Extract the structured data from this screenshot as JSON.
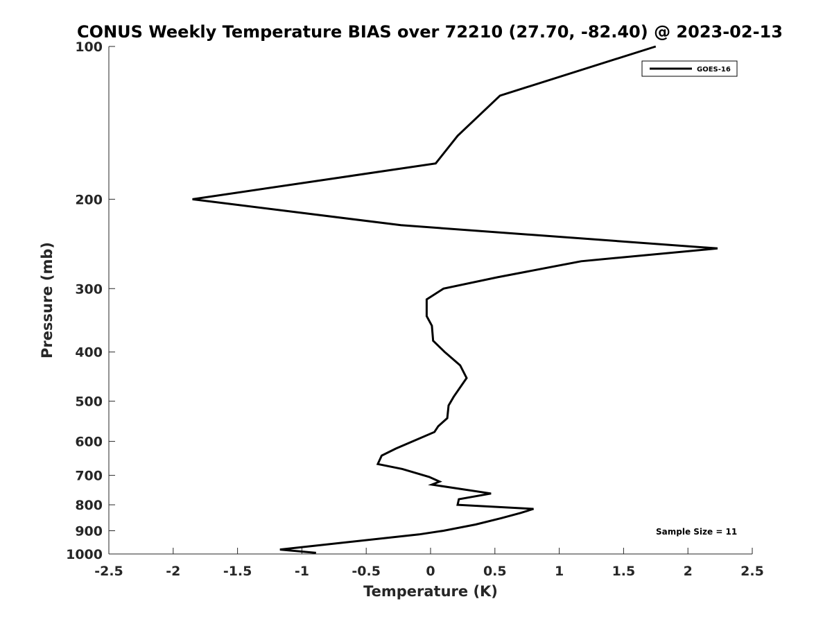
{
  "chart_data": {
    "type": "line",
    "title": "CONUS Weekly Temperature BIAS over 72210 (27.70, -82.40) @ 2023-02-13",
    "xlabel": "Temperature (K)",
    "ylabel": "Pressure (mb)",
    "xlim": [
      -2.5,
      2.5
    ],
    "ylim": [
      1000,
      100
    ],
    "y_scale": "log",
    "y_reversed": true,
    "x_ticks": [
      -2.5,
      -2,
      -1.5,
      -1,
      -0.5,
      0,
      0.5,
      1,
      1.5,
      2,
      2.5
    ],
    "x_tick_labels": [
      "-2.5",
      "-2",
      "-1.5",
      "-1",
      "-0.5",
      "0",
      "0.5",
      "1",
      "1.5",
      "2",
      "2.5"
    ],
    "y_ticks": [
      100,
      200,
      300,
      400,
      500,
      600,
      700,
      800,
      900,
      1000
    ],
    "y_tick_labels": [
      "100",
      "200",
      "300",
      "400",
      "500",
      "600",
      "700",
      "800",
      "900",
      "1000"
    ],
    "grid": false,
    "legend_position": "top-right",
    "series": [
      {
        "name": "GOES-16",
        "color": "#000000",
        "points": [
          {
            "x": 1.75,
            "y": 100
          },
          {
            "x": 0.54,
            "y": 125
          },
          {
            "x": 0.21,
            "y": 150
          },
          {
            "x": 0.04,
            "y": 170
          },
          {
            "x": -1.85,
            "y": 200
          },
          {
            "x": -0.23,
            "y": 225
          },
          {
            "x": 2.23,
            "y": 250
          },
          {
            "x": 1.17,
            "y": 265
          },
          {
            "x": 0.52,
            "y": 285
          },
          {
            "x": 0.1,
            "y": 300
          },
          {
            "x": -0.03,
            "y": 315
          },
          {
            "x": -0.03,
            "y": 340
          },
          {
            "x": 0.01,
            "y": 355
          },
          {
            "x": 0.02,
            "y": 380
          },
          {
            "x": 0.11,
            "y": 400
          },
          {
            "x": 0.23,
            "y": 425
          },
          {
            "x": 0.28,
            "y": 450
          },
          {
            "x": 0.18,
            "y": 490
          },
          {
            "x": 0.14,
            "y": 510
          },
          {
            "x": 0.13,
            "y": 540
          },
          {
            "x": 0.06,
            "y": 560
          },
          {
            "x": 0.03,
            "y": 575
          },
          {
            "x": -0.27,
            "y": 620
          },
          {
            "x": -0.38,
            "y": 640
          },
          {
            "x": -0.41,
            "y": 665
          },
          {
            "x": -0.22,
            "y": 680
          },
          {
            "x": -0.01,
            "y": 705
          },
          {
            "x": 0.07,
            "y": 720
          },
          {
            "x": 0.01,
            "y": 730
          },
          {
            "x": 0.47,
            "y": 760
          },
          {
            "x": 0.22,
            "y": 780
          },
          {
            "x": 0.21,
            "y": 800
          },
          {
            "x": 0.8,
            "y": 815
          },
          {
            "x": 0.7,
            "y": 830
          },
          {
            "x": 0.55,
            "y": 850
          },
          {
            "x": 0.35,
            "y": 875
          },
          {
            "x": 0.1,
            "y": 900
          },
          {
            "x": -0.09,
            "y": 915
          },
          {
            "x": -1.17,
            "y": 980
          },
          {
            "x": -0.89,
            "y": 995
          }
        ]
      }
    ],
    "legend": {
      "entries": [
        "GOES-16"
      ]
    },
    "annotations": [
      {
        "text": "Sample Size = 11",
        "position": "bottom-right"
      }
    ]
  }
}
